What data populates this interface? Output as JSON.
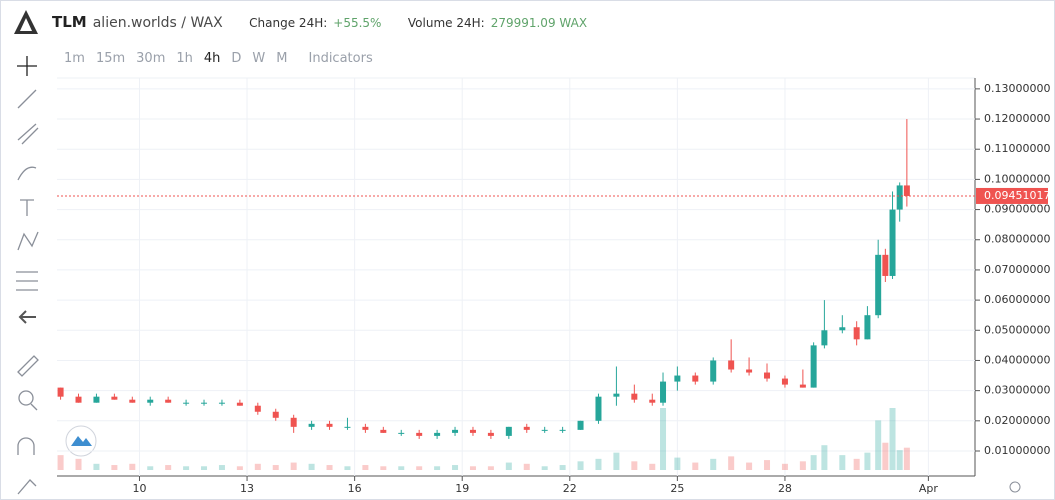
{
  "header": {
    "symbol": "TLM",
    "pair": "alien.worlds / WAX",
    "change_label": "Change 24H:",
    "change_value": "+55.5%",
    "volume_label": "Volume 24H:",
    "volume_value": "279991.09 WAX"
  },
  "toolbar": {
    "intervals": [
      "1m",
      "15m",
      "30m",
      "1h",
      "4h",
      "D",
      "W",
      "M"
    ],
    "active": "4h",
    "indicators": "Indicators"
  },
  "chart_data": {
    "type": "candlestick",
    "up_color": "#26a69a",
    "down_color": "#ef5350",
    "x": [
      7.8,
      8.3,
      8.8,
      9.3,
      9.8,
      10.3,
      10.8,
      11.3,
      11.8,
      12.3,
      12.8,
      13.3,
      13.8,
      14.3,
      14.8,
      15.3,
      15.8,
      16.3,
      16.8,
      17.3,
      17.8,
      18.3,
      18.8,
      19.3,
      19.8,
      20.3,
      20.8,
      21.3,
      21.8,
      22.3,
      22.8,
      23.3,
      23.8,
      24.3,
      24.6,
      25.0,
      25.5,
      26.0,
      26.5,
      27.0,
      27.5,
      28.0,
      28.5,
      28.8,
      29.1,
      29.6,
      30.0,
      30.3,
      30.6,
      30.8,
      31.0,
      31.2,
      31.4
    ],
    "open": [
      0.031,
      0.028,
      0.026,
      0.028,
      0.027,
      0.026,
      0.027,
      0.026,
      0.026,
      0.026,
      0.026,
      0.025,
      0.023,
      0.021,
      0.018,
      0.019,
      0.018,
      0.018,
      0.017,
      0.016,
      0.016,
      0.015,
      0.016,
      0.017,
      0.016,
      0.015,
      0.018,
      0.017,
      0.017,
      0.017,
      0.02,
      0.028,
      0.029,
      0.027,
      0.026,
      0.033,
      0.035,
      0.033,
      0.04,
      0.037,
      0.036,
      0.034,
      0.032,
      0.031,
      0.045,
      0.05,
      0.051,
      0.047,
      0.055,
      0.075,
      0.068,
      0.09,
      0.098
    ],
    "high": [
      0.031,
      0.029,
      0.029,
      0.029,
      0.028,
      0.028,
      0.028,
      0.027,
      0.027,
      0.027,
      0.027,
      0.026,
      0.024,
      0.022,
      0.02,
      0.02,
      0.021,
      0.019,
      0.018,
      0.017,
      0.017,
      0.017,
      0.018,
      0.018,
      0.017,
      0.018,
      0.019,
      0.018,
      0.018,
      0.02,
      0.029,
      0.038,
      0.032,
      0.029,
      0.036,
      0.038,
      0.036,
      0.041,
      0.047,
      0.041,
      0.039,
      0.035,
      0.037,
      0.046,
      0.06,
      0.055,
      0.053,
      0.058,
      0.08,
      0.077,
      0.096,
      0.099,
      0.12
    ],
    "low": [
      0.027,
      0.026,
      0.026,
      0.027,
      0.026,
      0.025,
      0.026,
      0.025,
      0.025,
      0.025,
      0.025,
      0.022,
      0.02,
      0.016,
      0.017,
      0.017,
      0.017,
      0.016,
      0.016,
      0.015,
      0.014,
      0.014,
      0.015,
      0.015,
      0.014,
      0.014,
      0.016,
      0.016,
      0.016,
      0.017,
      0.019,
      0.025,
      0.026,
      0.025,
      0.025,
      0.03,
      0.032,
      0.032,
      0.036,
      0.035,
      0.033,
      0.031,
      0.031,
      0.031,
      0.044,
      0.049,
      0.045,
      0.047,
      0.054,
      0.066,
      0.067,
      0.086,
      0.091
    ],
    "close": [
      0.028,
      0.026,
      0.028,
      0.027,
      0.026,
      0.027,
      0.026,
      0.026,
      0.026,
      0.026,
      0.025,
      0.023,
      0.021,
      0.018,
      0.019,
      0.018,
      0.018,
      0.017,
      0.016,
      0.016,
      0.015,
      0.016,
      0.017,
      0.016,
      0.015,
      0.018,
      0.017,
      0.017,
      0.017,
      0.02,
      0.028,
      0.029,
      0.027,
      0.026,
      0.033,
      0.035,
      0.033,
      0.04,
      0.037,
      0.036,
      0.034,
      0.032,
      0.031,
      0.045,
      0.05,
      0.051,
      0.047,
      0.055,
      0.075,
      0.068,
      0.09,
      0.098,
      0.09451017
    ],
    "volume": [
      12000,
      9000,
      5000,
      4000,
      5000,
      3000,
      4000,
      3000,
      3000,
      4000,
      3000,
      5000,
      4000,
      6000,
      5000,
      4000,
      3000,
      4000,
      3000,
      3000,
      3000,
      3000,
      4000,
      3000,
      3000,
      6000,
      5000,
      3000,
      4000,
      7000,
      9000,
      14000,
      7000,
      5000,
      50000,
      10000,
      6000,
      9000,
      11000,
      6000,
      8000,
      5000,
      7000,
      12000,
      20000,
      12000,
      9000,
      14000,
      40000,
      22000,
      50000,
      16000,
      18000
    ],
    "xlim": [
      7.7,
      33.3
    ],
    "xticks": [
      10,
      13,
      16,
      19,
      22,
      25,
      28,
      {
        "value": 32,
        "label": "Apr"
      }
    ],
    "ylim": [
      0.0037,
      0.1336
    ],
    "yticks": [
      {
        "value": 0.01,
        "label": "0.01000000"
      },
      {
        "value": 0.02,
        "label": "0.02000000"
      },
      {
        "value": 0.03,
        "label": "0.03000000"
      },
      {
        "value": 0.04,
        "label": "0.04000000"
      },
      {
        "value": 0.05,
        "label": "0.05000000"
      },
      {
        "value": 0.06,
        "label": "0.06000000"
      },
      {
        "value": 0.07,
        "label": "0.07000000"
      },
      {
        "value": 0.08,
        "label": "0.08000000"
      },
      {
        "value": 0.09,
        "label": "0.09000000"
      },
      {
        "value": 0.1,
        "label": "0.10000000"
      },
      {
        "value": 0.11,
        "label": "0.11000000"
      },
      {
        "value": 0.12,
        "label": "0.12000000"
      },
      {
        "value": 0.13,
        "label": "0.13000000"
      }
    ],
    "last_price": 0.09451017,
    "grid": true
  }
}
